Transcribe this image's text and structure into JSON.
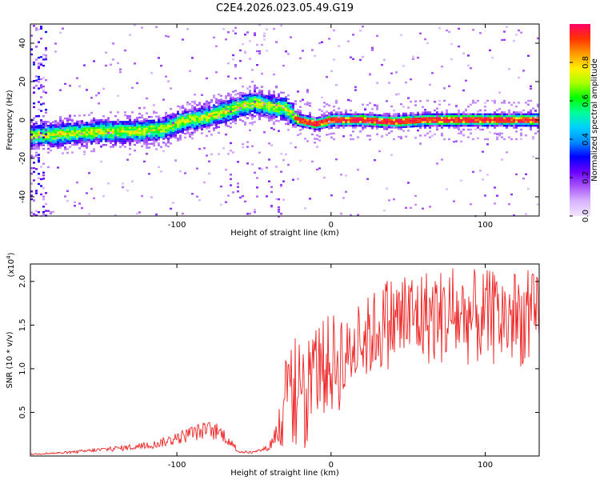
{
  "figure": {
    "title": "C2E4.2026.023.05.49.G19"
  },
  "chart_data": [
    {
      "type": "heatmap",
      "title": "C2E4.2026.023.05.49.G19",
      "xlabel": "Height of straight line (km)",
      "ylabel": "Frequency (Hz)",
      "xlim": [
        -195,
        135
      ],
      "ylim": [
        -50,
        50
      ],
      "xticks": [
        -100,
        0,
        100
      ],
      "yticks": [
        -40,
        -20,
        0,
        20,
        40
      ],
      "colorbar": {
        "label": "Normalized spectral amplitude",
        "range": [
          0,
          1
        ],
        "ticks": [
          "0.0",
          "0.2",
          "0.4",
          "0.6",
          "0.8"
        ],
        "tick_values": [
          0.0,
          0.2,
          0.4,
          0.6,
          0.8
        ],
        "colors": [
          "#f2e6ff",
          "#d9b3ff",
          "#a855f7",
          "#6a00ff",
          "#0000ff",
          "#008cff",
          "#00d0ff",
          "#00ff99",
          "#00ff00",
          "#aaff00",
          "#ffee00",
          "#ff9900",
          "#ff3300",
          "#ff0066"
        ]
      },
      "ridge": [
        {
          "x": -185,
          "f": -8
        },
        {
          "x": -170,
          "f": -7
        },
        {
          "x": -150,
          "f": -6
        },
        {
          "x": -130,
          "f": -6
        },
        {
          "x": -110,
          "f": -5
        },
        {
          "x": -95,
          "f": 0
        },
        {
          "x": -85,
          "f": 1
        },
        {
          "x": -70,
          "f": 4
        },
        {
          "x": -60,
          "f": 7
        },
        {
          "x": -50,
          "f": 9
        },
        {
          "x": -40,
          "f": 7
        },
        {
          "x": -30,
          "f": 6
        },
        {
          "x": -22,
          "f": 0
        },
        {
          "x": -10,
          "f": -2
        },
        {
          "x": 0,
          "f": 0
        },
        {
          "x": 20,
          "f": 0
        },
        {
          "x": 40,
          "f": -1
        },
        {
          "x": 60,
          "f": 0
        },
        {
          "x": 80,
          "f": 0
        },
        {
          "x": 100,
          "f": 0
        },
        {
          "x": 120,
          "f": 0
        },
        {
          "x": 135,
          "f": 0
        }
      ]
    },
    {
      "type": "line",
      "xlabel": "Height of straight line (km)",
      "ylabel": "SNR (10 * v/v)",
      "y_multiplier": "(x10^4)",
      "y_multiplier_base": "(x10",
      "y_multiplier_exp": "4",
      "y_multiplier_close": ")",
      "xlim": [
        -195,
        135
      ],
      "ylim": [
        0,
        2.2
      ],
      "xticks": [
        -100,
        0,
        100
      ],
      "yticks": [
        0.5,
        1.0,
        1.5,
        2.0
      ],
      "ytick_labels": [
        "0.5",
        "1.0",
        "1.5",
        "2.0"
      ],
      "color": "#ee2222",
      "envelope": [
        {
          "x": -195,
          "y": 0.02
        },
        {
          "x": -170,
          "y": 0.04
        },
        {
          "x": -150,
          "y": 0.07
        },
        {
          "x": -130,
          "y": 0.1
        },
        {
          "x": -115,
          "y": 0.13
        },
        {
          "x": -100,
          "y": 0.2
        },
        {
          "x": -90,
          "y": 0.26
        },
        {
          "x": -80,
          "y": 0.3
        },
        {
          "x": -70,
          "y": 0.25
        },
        {
          "x": -60,
          "y": 0.05
        },
        {
          "x": -50,
          "y": 0.04
        },
        {
          "x": -40,
          "y": 0.1
        },
        {
          "x": -35,
          "y": 0.3
        },
        {
          "x": -30,
          "y": 0.7
        },
        {
          "x": -25,
          "y": 0.95
        },
        {
          "x": -20,
          "y": 1.0
        },
        {
          "x": -10,
          "y": 1.0
        },
        {
          "x": 0,
          "y": 1.05
        },
        {
          "x": 10,
          "y": 1.15
        },
        {
          "x": 20,
          "y": 1.3
        },
        {
          "x": 30,
          "y": 1.45
        },
        {
          "x": 40,
          "y": 1.55
        },
        {
          "x": 60,
          "y": 1.6
        },
        {
          "x": 80,
          "y": 1.6
        },
        {
          "x": 100,
          "y": 1.58
        },
        {
          "x": 120,
          "y": 1.58
        },
        {
          "x": 135,
          "y": 1.55
        }
      ]
    }
  ]
}
